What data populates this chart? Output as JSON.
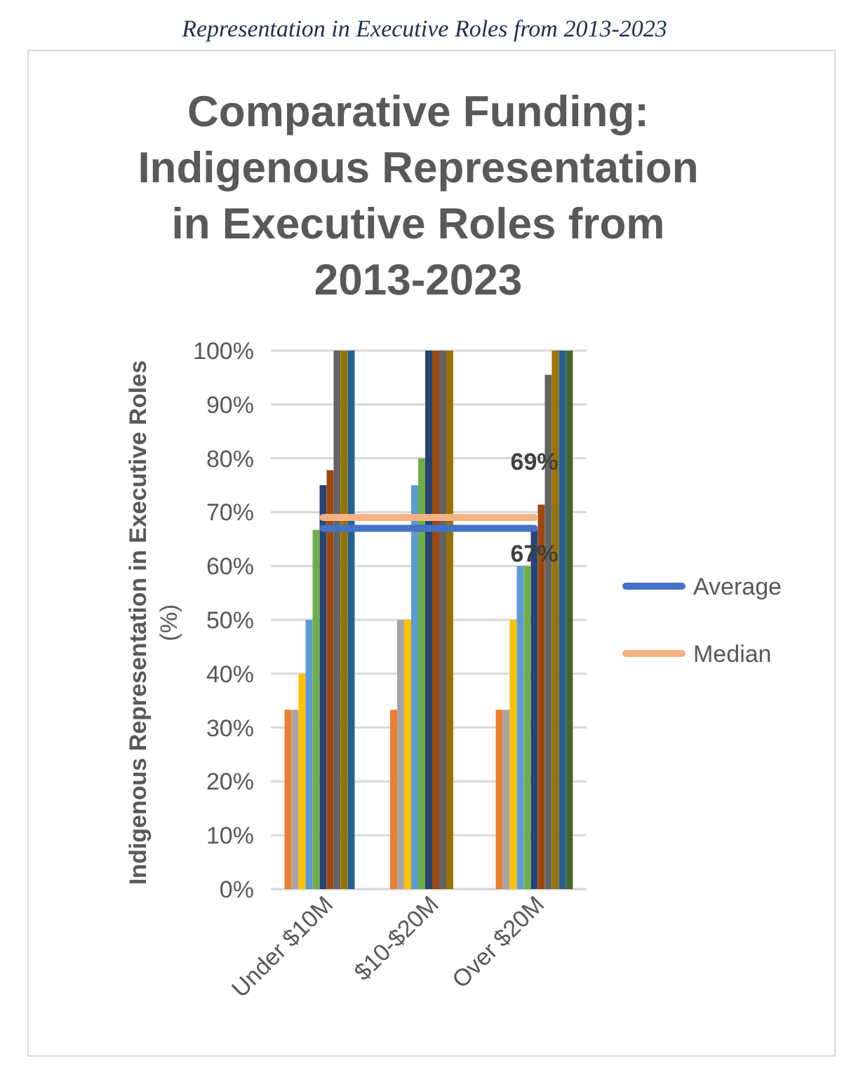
{
  "chart_data": {
    "type": "bar",
    "title": "Comparative Funding: Indigenous Representation in Executive Roles from 2013-2023",
    "ylabel": "Indigenous Representation in Executive Roles (%)",
    "annotations": [
      "Representation in Executive Roles from 2013-2023"
    ],
    "categories": [
      "Under $10M",
      "$10-$20M",
      "Over $20M"
    ],
    "ylim": [
      0,
      100
    ],
    "yticks": [
      {
        "value": 0,
        "label": "0%"
      },
      {
        "value": 10,
        "label": "10%"
      },
      {
        "value": 20,
        "label": "20%"
      },
      {
        "value": 30,
        "label": "30%"
      },
      {
        "value": 40,
        "label": "40%"
      },
      {
        "value": 50,
        "label": "50%"
      },
      {
        "value": 60,
        "label": "60%"
      },
      {
        "value": 70,
        "label": "70%"
      },
      {
        "value": 80,
        "label": "80%"
      },
      {
        "value": 90,
        "label": "90%"
      },
      {
        "value": 100,
        "label": "100%"
      }
    ],
    "grid": "y",
    "legend": "right",
    "series": [
      {
        "color": "#ed7d31",
        "values": [
          33.3,
          33.3,
          33.3
        ]
      },
      {
        "color": "#a5a5a5",
        "values": [
          33.3,
          50,
          33.3
        ]
      },
      {
        "color": "#ffc000",
        "values": [
          40,
          50,
          50
        ]
      },
      {
        "color": "#5b9bd5",
        "values": [
          50,
          75,
          60
        ]
      },
      {
        "color": "#70ad47",
        "values": [
          66.7,
          80,
          60
        ]
      },
      {
        "color": "#264478",
        "values": [
          75,
          100,
          66.7
        ]
      },
      {
        "color": "#9e480e",
        "values": [
          77.8,
          100,
          71.4
        ]
      },
      {
        "color": "#636363",
        "values": [
          100,
          100,
          95.5
        ]
      },
      {
        "color": "#997300",
        "values": [
          100,
          100,
          100
        ]
      },
      {
        "color": "#255e91",
        "values": [
          100,
          null,
          100
        ]
      },
      {
        "color": "#43682b",
        "values": [
          null,
          null,
          100
        ]
      },
      {
        "type": "line",
        "name": "Average",
        "color": "#4472c4",
        "values": [
          67,
          67,
          67
        ],
        "value_labels": [
          null,
          null,
          "67%"
        ]
      },
      {
        "type": "line",
        "name": "Median",
        "color": "#f4b183",
        "values": [
          69,
          69,
          69
        ],
        "value_labels": [
          null,
          null,
          "69%"
        ]
      }
    ]
  }
}
